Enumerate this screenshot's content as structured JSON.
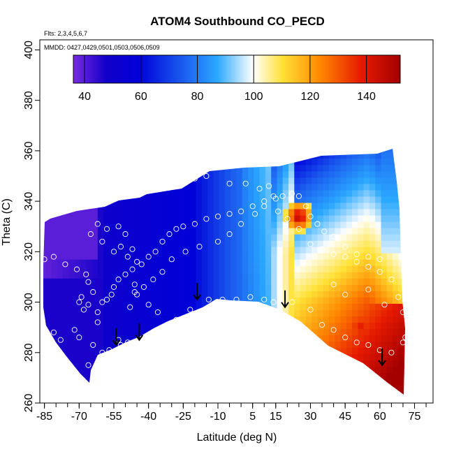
{
  "chart_data": {
    "type": "heatmap",
    "title": "ATOM4 Southbound CO_PECD",
    "annotations": {
      "flights": "Flts: 2,3,4,5,6,7",
      "dates": "MMDD: 0427,0429,0501,0503,0506,0509"
    },
    "xlabel": "Latitude (deg N)",
    "ylabel": "Theta (C)",
    "xlim": [
      -87,
      83
    ],
    "ylim": [
      260,
      404
    ],
    "x_ticks": [
      -85,
      -70,
      -55,
      -40,
      -25,
      -10,
      5,
      15,
      30,
      45,
      60,
      75
    ],
    "y_ticks": [
      260,
      280,
      300,
      320,
      340,
      360,
      380,
      400
    ],
    "colorbar": {
      "range": [
        36,
        152
      ],
      "ticks": [
        40,
        60,
        80,
        100,
        120,
        140
      ],
      "colors": [
        "#7a2be0",
        "#1200c8",
        "#0000d8",
        "#1c5ff0",
        "#2aa8ff",
        "#ffffff",
        "#ffe135",
        "#ff8400",
        "#e61a00",
        "#a40000"
      ]
    },
    "arrows": [
      {
        "lat": -54,
        "theta": 283
      },
      {
        "lat": -44,
        "theta": 285
      },
      {
        "lat": -19,
        "theta": 301
      },
      {
        "lat": 19,
        "theta": 298
      },
      {
        "lat": 61,
        "theta": 275
      }
    ],
    "observations": [
      [
        -85,
        317
      ],
      [
        -81,
        318
      ],
      [
        -76,
        315
      ],
      [
        -71,
        313
      ],
      [
        -67,
        311
      ],
      [
        -66,
        308
      ],
      [
        -64,
        304
      ],
      [
        -68,
        297
      ],
      [
        -70,
        300
      ],
      [
        -69,
        302
      ],
      [
        -66,
        299
      ],
      [
        -62,
        296
      ],
      [
        -60,
        300
      ],
      [
        -58,
        301
      ],
      [
        -62,
        292
      ],
      [
        -72,
        289
      ],
      [
        -78,
        285
      ],
      [
        -81,
        288
      ],
      [
        -70,
        286
      ],
      [
        -66,
        275
      ],
      [
        -64,
        283
      ],
      [
        -60,
        280
      ],
      [
        -57,
        281
      ],
      [
        -52,
        283
      ],
      [
        -49,
        284
      ],
      [
        -53,
        285
      ],
      [
        -56,
        303
      ],
      [
        -55,
        306
      ],
      [
        -53,
        309
      ],
      [
        -50,
        311
      ],
      [
        -47,
        313
      ],
      [
        -45,
        316
      ],
      [
        -43,
        315
      ],
      [
        -40,
        318
      ],
      [
        -37,
        320
      ],
      [
        -34,
        324
      ],
      [
        -31,
        327
      ],
      [
        -28,
        329
      ],
      [
        -25,
        330
      ],
      [
        -20,
        331
      ],
      [
        -15,
        333
      ],
      [
        -10,
        334
      ],
      [
        -5,
        335
      ],
      [
        0,
        336
      ],
      [
        5,
        338
      ],
      [
        10,
        340
      ],
      [
        15,
        341
      ],
      [
        18,
        342
      ],
      [
        22,
        343
      ],
      [
        25,
        342
      ],
      [
        28,
        338
      ],
      [
        30,
        334
      ],
      [
        33,
        331
      ],
      [
        36,
        328
      ],
      [
        40,
        326
      ],
      [
        45,
        322
      ],
      [
        50,
        319
      ],
      [
        55,
        318
      ],
      [
        60,
        317
      ],
      [
        -52,
        322
      ],
      [
        -50,
        327
      ],
      [
        -53,
        330
      ],
      [
        -58,
        329
      ],
      [
        -62,
        331
      ],
      [
        -65,
        327
      ],
      [
        -60,
        324
      ],
      [
        -55,
        320
      ],
      [
        -49,
        318
      ],
      [
        -47,
        321
      ],
      [
        -45,
        303
      ],
      [
        -48,
        298
      ],
      [
        -46,
        307
      ],
      [
        -40,
        299
      ],
      [
        -36,
        296
      ],
      [
        -32,
        290
      ],
      [
        -28,
        293
      ],
      [
        -22,
        297
      ],
      [
        -14,
        301
      ],
      [
        -8,
        301
      ],
      [
        -2,
        301
      ],
      [
        4,
        302
      ],
      [
        10,
        301
      ],
      [
        14,
        300
      ],
      [
        22,
        300
      ],
      [
        30,
        297
      ],
      [
        35,
        291
      ],
      [
        40,
        289
      ],
      [
        45,
        286
      ],
      [
        50,
        284
      ],
      [
        55,
        283
      ],
      [
        60,
        281
      ],
      [
        65,
        280
      ],
      [
        70,
        284
      ],
      [
        71,
        286
      ],
      [
        70,
        296
      ],
      [
        68,
        302
      ],
      [
        65,
        309
      ],
      [
        60,
        312
      ],
      [
        55,
        314
      ],
      [
        50,
        316
      ],
      [
        45,
        318
      ],
      [
        40,
        319
      ],
      [
        35,
        321
      ],
      [
        30,
        323
      ],
      [
        25,
        329
      ],
      [
        20,
        333
      ],
      [
        16,
        336
      ],
      [
        -28,
        348
      ],
      [
        -20,
        349
      ],
      [
        -15,
        350
      ],
      [
        -5,
        347
      ],
      [
        2,
        347
      ],
      [
        8,
        345
      ],
      [
        12,
        346
      ],
      [
        14,
        342
      ],
      [
        10,
        338
      ],
      [
        6,
        335
      ],
      [
        0,
        331
      ],
      [
        -5,
        327
      ],
      [
        -10,
        324
      ],
      [
        -18,
        322
      ],
      [
        -24,
        320
      ],
      [
        -30,
        317
      ],
      [
        -34,
        312
      ],
      [
        -38,
        309
      ],
      [
        -42,
        306
      ],
      [
        -46,
        304
      ],
      [
        40,
        307
      ],
      [
        45,
        303
      ],
      [
        55,
        305
      ],
      [
        62,
        299
      ]
    ]
  }
}
